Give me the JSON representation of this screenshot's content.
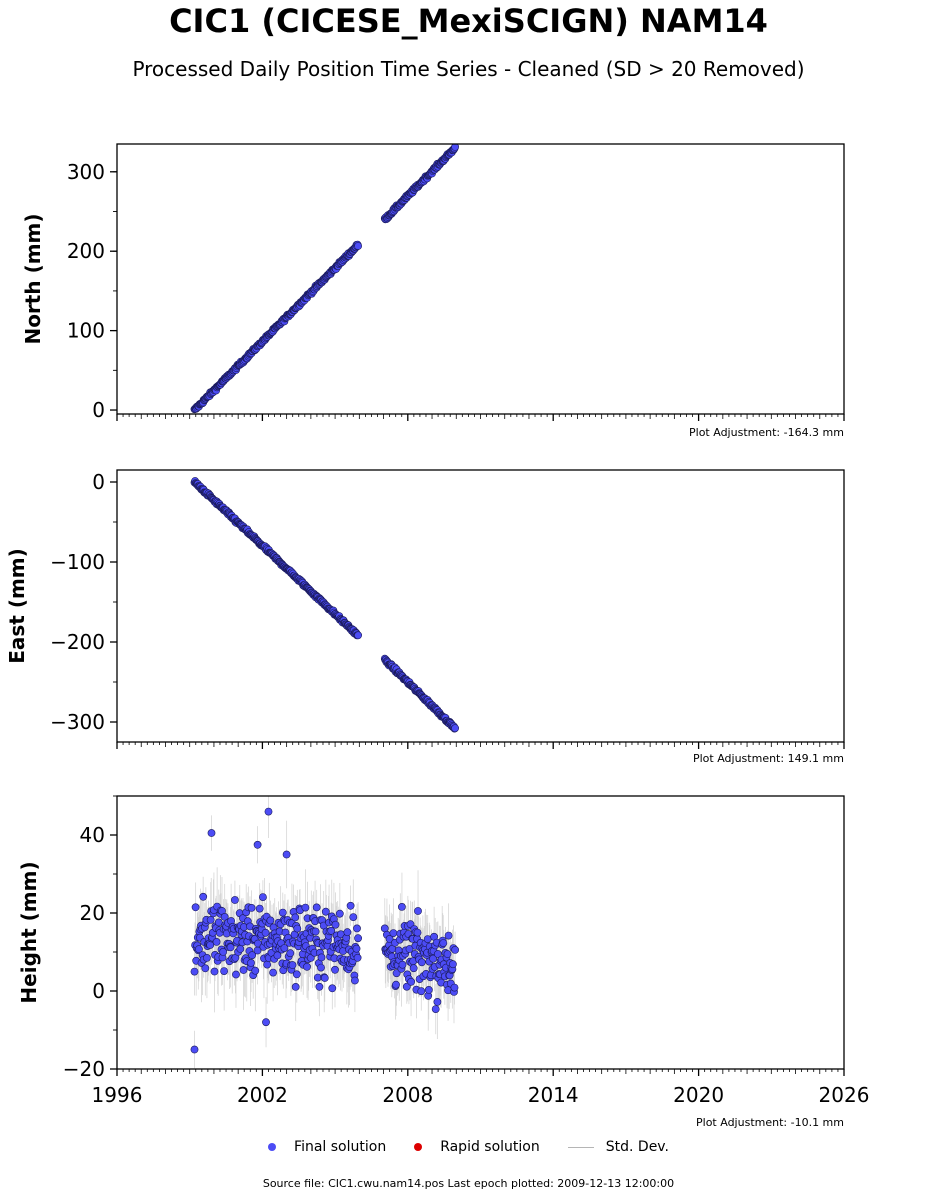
{
  "title": "CIC1 (CICESE_MexiSCIGN) NAM14",
  "subtitle": "Processed Daily Position Time Series - Cleaned (SD > 20 Removed)",
  "legend": {
    "final": "Final solution",
    "rapid": "Rapid solution",
    "std": "Std. Dev."
  },
  "source_text": "Source file: CIC1.cwu.nam14.pos  Last epoch plotted: 2009-12-13 12:00:00",
  "colors": {
    "final": "#4c4cf5",
    "rapid": "#dd0000",
    "std": "#b5b5b5"
  },
  "chart_data": [
    {
      "type": "scatter",
      "ylabel": "North (mm)",
      "adjustment": "Plot Adjustment: -164.3 mm",
      "xlim": [
        1996,
        2026
      ],
      "ylim": [
        -5,
        335
      ],
      "yticks": [
        0,
        100,
        200,
        300
      ],
      "yticklabels": [
        "0",
        "100",
        "200",
        "300"
      ],
      "segments": [
        {
          "x": [
            1999.2,
            2005.95
          ],
          "y": [
            0,
            208
          ]
        },
        {
          "x": [
            2007.05,
            2009.95
          ],
          "y": [
            240,
            330
          ]
        }
      ],
      "noise": 1.5
    },
    {
      "type": "scatter",
      "ylabel": "East (mm)",
      "adjustment": "Plot Adjustment: 149.1 mm",
      "xlim": [
        1996,
        2026
      ],
      "ylim": [
        -325,
        15
      ],
      "yticks": [
        0,
        -100,
        -200,
        -300
      ],
      "yticklabels": [
        "0",
        "−100",
        "−200",
        "−300"
      ],
      "segments": [
        {
          "x": [
            1999.2,
            2005.95
          ],
          "y": [
            0,
            -192
          ]
        },
        {
          "x": [
            2007.05,
            2009.95
          ],
          "y": [
            -222,
            -308
          ]
        }
      ],
      "noise": 1.5
    },
    {
      "type": "scatter",
      "ylabel": "Height (mm)",
      "adjustment": "Plot Adjustment: -10.1 mm",
      "xlim": [
        1996,
        2026
      ],
      "ylim": [
        -20,
        50
      ],
      "yticks": [
        -20,
        0,
        20,
        40
      ],
      "yticklabels": [
        "−20",
        "0",
        "20",
        "40"
      ],
      "xticks": [
        1996,
        2002,
        2008,
        2014,
        2020,
        2026
      ],
      "xticklabels": [
        "1996",
        "2002",
        "2008",
        "2014",
        "2020",
        "2026"
      ],
      "segments": [
        {
          "x": [
            1999.2,
            2005.95
          ],
          "y": [
            14,
            12
          ]
        },
        {
          "x": [
            2007.05,
            2009.95
          ],
          "y": [
            10,
            7
          ]
        }
      ],
      "noise": 6.5,
      "outliers": [
        {
          "x": 1999.2,
          "y": -15
        },
        {
          "x": 1999.9,
          "y": 40.5
        },
        {
          "x": 2002.25,
          "y": 46
        },
        {
          "x": 2001.8,
          "y": 37.5
        },
        {
          "x": 2002.15,
          "y": -8
        },
        {
          "x": 2003.0,
          "y": 35
        }
      ]
    }
  ]
}
